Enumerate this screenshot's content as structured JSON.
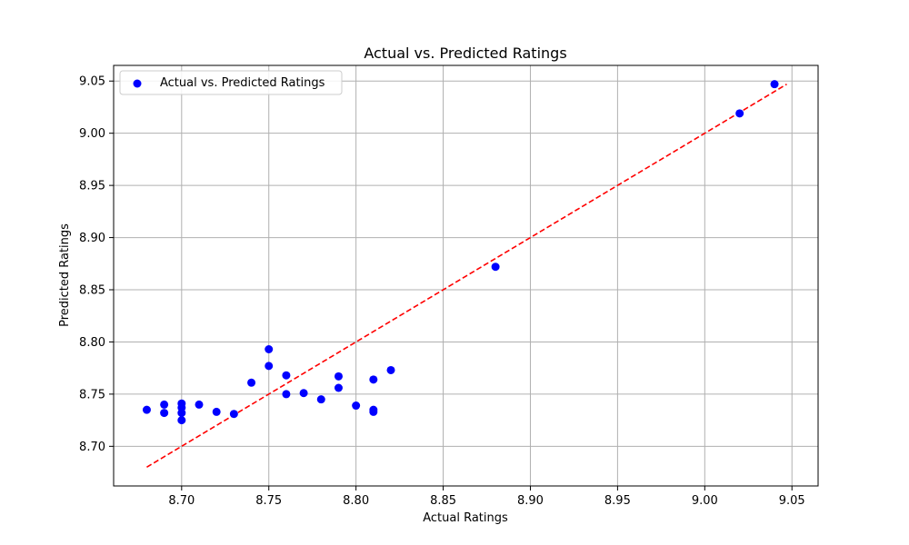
{
  "chart_data": {
    "type": "scatter",
    "title": "Actual vs. Predicted Ratings",
    "xlabel": "Actual Ratings",
    "ylabel": "Predicted Ratings",
    "xlim": [
      8.661,
      9.065
    ],
    "ylim": [
      8.662,
      9.065
    ],
    "xticks": [
      8.7,
      8.75,
      8.8,
      8.85,
      8.9,
      8.95,
      9.0,
      9.05
    ],
    "xtick_labels": [
      "8.70",
      "8.75",
      "8.80",
      "8.85",
      "8.90",
      "8.95",
      "9.00",
      "9.05"
    ],
    "yticks": [
      8.7,
      8.75,
      8.8,
      8.85,
      8.9,
      8.95,
      9.0,
      9.05
    ],
    "ytick_labels": [
      "8.70",
      "8.75",
      "8.80",
      "8.85",
      "8.90",
      "8.95",
      "9.00",
      "9.05"
    ],
    "grid": true,
    "legend_position": "top-left",
    "series": [
      {
        "name": "Actual vs. Predicted Ratings",
        "color": "#0000ff",
        "points": [
          [
            8.68,
            8.735
          ],
          [
            8.69,
            8.74
          ],
          [
            8.69,
            8.732
          ],
          [
            8.7,
            8.741
          ],
          [
            8.7,
            8.737
          ],
          [
            8.7,
            8.732
          ],
          [
            8.7,
            8.725
          ],
          [
            8.71,
            8.74
          ],
          [
            8.72,
            8.733
          ],
          [
            8.73,
            8.731
          ],
          [
            8.74,
            8.761
          ],
          [
            8.75,
            8.793
          ],
          [
            8.75,
            8.777
          ],
          [
            8.76,
            8.768
          ],
          [
            8.76,
            8.75
          ],
          [
            8.77,
            8.751
          ],
          [
            8.78,
            8.745
          ],
          [
            8.79,
            8.767
          ],
          [
            8.79,
            8.756
          ],
          [
            8.8,
            8.739
          ],
          [
            8.81,
            8.764
          ],
          [
            8.81,
            8.735
          ],
          [
            8.81,
            8.733
          ],
          [
            8.82,
            8.773
          ],
          [
            8.88,
            8.872
          ],
          [
            9.02,
            9.019
          ],
          [
            9.04,
            9.047
          ]
        ]
      }
    ],
    "reference_line": {
      "color": "#ff0000",
      "style": "dashed",
      "from": [
        8.68,
        8.68
      ],
      "to": [
        9.047,
        9.047
      ]
    }
  }
}
